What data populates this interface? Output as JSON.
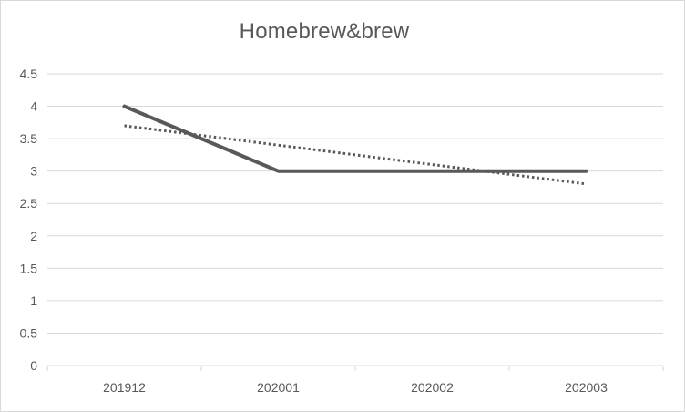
{
  "chart_data": {
    "type": "line",
    "title": "Homebrew&brew",
    "categories": [
      "201912",
      "202001",
      "202002",
      "202003"
    ],
    "series": [
      {
        "values": [
          4,
          3,
          3,
          3
        ],
        "color": "#595959",
        "style": "solid"
      }
    ],
    "trendline": {
      "type": "linear",
      "values": [
        3.7,
        3.4,
        3.1,
        2.8
      ],
      "color": "#595959",
      "style": "dotted"
    },
    "yticks": [
      0,
      0.5,
      1,
      1.5,
      2,
      2.5,
      3,
      3.5,
      4,
      4.5
    ],
    "ytick_labels": [
      "0",
      "0.5",
      "1",
      "1.5",
      "2",
      "2.5",
      "3",
      "3.5",
      "4",
      "4.5"
    ],
    "ylim": [
      0,
      4.5
    ],
    "xlabel": "",
    "ylabel": "",
    "grid": true,
    "legend": "none"
  }
}
